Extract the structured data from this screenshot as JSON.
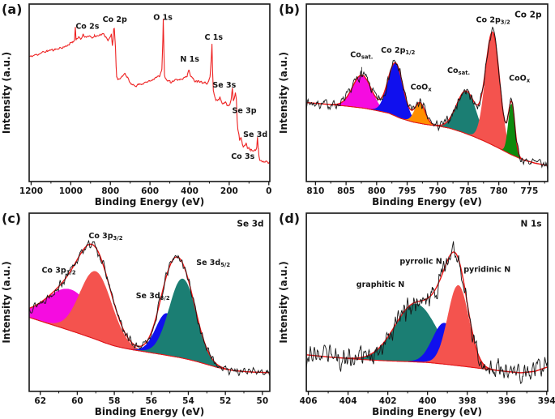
{
  "figure": {
    "description": "Four-panel XPS spectra figure",
    "background": "#ffffff"
  },
  "chart_data": [
    {
      "id": "a",
      "panel_letter": "(a)",
      "type": "line",
      "corner_label": "",
      "xlabel": "Binding Energy (eV)",
      "ylabel": "Intensity (a.u.)",
      "x_axis": {
        "left": 1210,
        "right": -5,
        "major_ticks": [
          1200,
          1000,
          800,
          600,
          400,
          200,
          0
        ],
        "minor_step": 100
      },
      "line_color": "#ee2222",
      "noise": 0.006,
      "seed": 11,
      "series": [
        {
          "name": "survey spectrum",
          "points": [
            [
              1200,
              0.705
            ],
            [
              1160,
              0.72
            ],
            [
              1120,
              0.735
            ],
            [
              1080,
              0.745
            ],
            [
              1040,
              0.755
            ],
            [
              1005,
              0.775
            ],
            [
              990,
              0.785
            ],
            [
              981,
              0.8
            ],
            [
              977,
              0.875
            ],
            [
              973,
              0.8
            ],
            [
              962,
              0.812
            ],
            [
              950,
              0.8
            ],
            [
              938,
              0.826
            ],
            [
              922,
              0.81
            ],
            [
              908,
              0.822
            ],
            [
              893,
              0.812
            ],
            [
              880,
              0.818
            ],
            [
              868,
              0.818
            ],
            [
              852,
              0.83
            ],
            [
              838,
              0.828
            ],
            [
              824,
              0.818
            ],
            [
              812,
              0.8
            ],
            [
              802,
              0.812
            ],
            [
              795,
              0.83
            ],
            [
              790,
              0.768
            ],
            [
              786,
              0.8
            ],
            [
              783,
              0.86
            ],
            [
              780,
              0.868
            ],
            [
              777,
              0.81
            ],
            [
              774,
              0.745
            ],
            [
              771,
              0.65
            ],
            [
              768,
              0.585
            ],
            [
              762,
              0.578
            ],
            [
              750,
              0.585
            ],
            [
              738,
              0.59
            ],
            [
              726,
              0.612
            ],
            [
              716,
              0.59
            ],
            [
              705,
              0.565
            ],
            [
              695,
              0.548
            ],
            [
              683,
              0.54
            ],
            [
              670,
              0.542
            ],
            [
              655,
              0.548
            ],
            [
              638,
              0.553
            ],
            [
              620,
              0.558
            ],
            [
              602,
              0.568
            ],
            [
              585,
              0.578
            ],
            [
              568,
              0.585
            ],
            [
              552,
              0.595
            ],
            [
              540,
              0.63
            ],
            [
              535,
              0.8
            ],
            [
              533,
              0.915
            ],
            [
              530,
              0.75
            ],
            [
              527,
              0.6
            ],
            [
              520,
              0.578
            ],
            [
              510,
              0.568
            ],
            [
              498,
              0.563
            ],
            [
              486,
              0.565
            ],
            [
              474,
              0.57
            ],
            [
              462,
              0.572
            ],
            [
              450,
              0.575
            ],
            [
              438,
              0.578
            ],
            [
              424,
              0.59
            ],
            [
              412,
              0.6
            ],
            [
              403,
              0.628
            ],
            [
              396,
              0.6
            ],
            [
              386,
              0.58
            ],
            [
              374,
              0.57
            ],
            [
              362,
              0.568
            ],
            [
              350,
              0.566
            ],
            [
              338,
              0.564
            ],
            [
              326,
              0.558
            ],
            [
              314,
              0.556
            ],
            [
              304,
              0.562
            ],
            [
              297,
              0.59
            ],
            [
              290,
              0.7
            ],
            [
              287,
              0.775
            ],
            [
              284,
              0.62
            ],
            [
              280,
              0.51
            ],
            [
              275,
              0.49
            ],
            [
              268,
              0.462
            ],
            [
              259,
              0.455
            ],
            [
              252,
              0.468
            ],
            [
              247,
              0.478
            ],
            [
              241,
              0.452
            ],
            [
              234,
              0.436
            ],
            [
              226,
              0.448
            ],
            [
              219,
              0.455
            ],
            [
              211,
              0.43
            ],
            [
              203,
              0.424
            ],
            [
              196,
              0.44
            ],
            [
              190,
              0.465
            ],
            [
              184,
              0.53
            ],
            [
              179,
              0.46
            ],
            [
              174,
              0.478
            ],
            [
              169,
              0.505
            ],
            [
              164,
              0.46
            ],
            [
              160,
              0.345
            ],
            [
              156,
              0.29
            ],
            [
              150,
              0.258
            ],
            [
              147,
              0.232
            ],
            [
              141,
              0.25
            ],
            [
              135,
              0.222
            ],
            [
              129,
              0.2
            ],
            [
              122,
              0.2
            ],
            [
              115,
              0.212
            ],
            [
              108,
              0.192
            ],
            [
              101,
              0.186
            ],
            [
              93,
              0.18
            ],
            [
              85,
              0.176
            ],
            [
              76,
              0.17
            ],
            [
              68,
              0.176
            ],
            [
              61,
              0.19
            ],
            [
              57,
              0.256
            ],
            [
              53,
              0.185
            ],
            [
              50,
              0.14
            ],
            [
              46,
              0.122
            ],
            [
              38,
              0.118
            ],
            [
              28,
              0.114
            ],
            [
              16,
              0.115
            ],
            [
              4,
              0.112
            ],
            [
              0,
              0.112
            ]
          ]
        }
      ],
      "annotations": [
        {
          "text": "Co 2s",
          "fx": 0.242,
          "fy": 0.139
        },
        {
          "text": "Co 2p",
          "fx": 0.356,
          "fy": 0.1
        },
        {
          "text": "O 1s",
          "fx": 0.556,
          "fy": 0.09
        },
        {
          "text": "N 1s",
          "fx": 0.667,
          "fy": 0.325
        },
        {
          "text": "C 1s",
          "fx": 0.767,
          "fy": 0.2
        },
        {
          "text": "Se 3s",
          "fx": 0.811,
          "fy": 0.47
        },
        {
          "text": "Se 3p",
          "fx": 0.894,
          "fy": 0.615
        },
        {
          "text": "Se 3d",
          "fx": 0.94,
          "fy": 0.748
        },
        {
          "text": "Co 3s",
          "fx": 0.888,
          "fy": 0.872
        }
      ]
    },
    {
      "id": "b",
      "panel_letter": "(b)",
      "type": "area",
      "corner_label": "Co 2p",
      "xlabel": "Binding Energy (eV)",
      "ylabel": "Intensity (a.u.)",
      "x_axis": {
        "left": 811.5,
        "right": 772,
        "major_ticks": [
          810,
          805,
          800,
          795,
          790,
          785,
          780,
          775
        ],
        "minor_step": 2.5
      },
      "data_color": "#161616",
      "envelope_color": "#e81414",
      "noise": 0.024,
      "seed": 7,
      "baseline": [
        [
          811.5,
          0.445
        ],
        [
          808,
          0.435
        ],
        [
          805,
          0.425
        ],
        [
          802,
          0.413
        ],
        [
          800,
          0.4
        ],
        [
          798,
          0.385
        ],
        [
          796,
          0.355
        ],
        [
          794,
          0.335
        ],
        [
          792,
          0.322
        ],
        [
          790,
          0.313
        ],
        [
          788,
          0.3
        ],
        [
          786,
          0.278
        ],
        [
          784,
          0.252
        ],
        [
          782,
          0.222
        ],
        [
          780,
          0.188
        ],
        [
          778,
          0.152
        ],
        [
          776,
          0.122
        ],
        [
          774,
          0.103
        ],
        [
          772,
          0.09
        ]
      ],
      "peaks": [
        {
          "name": "Co sat.",
          "center": 802.4,
          "sigma": 1.55,
          "amp": 0.185,
          "color": "#f50ce0"
        },
        {
          "name": "Co 2p1/2",
          "center": 796.9,
          "sigma": 1.25,
          "amp": 0.3,
          "color": "#1010ee"
        },
        {
          "name": "CoOx",
          "center": 792.9,
          "sigma": 0.85,
          "amp": 0.115,
          "color": "#ff8f00"
        },
        {
          "name": "Co sat.",
          "center": 785.3,
          "sigma": 1.6,
          "amp": 0.24,
          "color": "#1b7e73"
        },
        {
          "name": "Co 2p3/2",
          "center": 781.0,
          "sigma": 1.15,
          "amp": 0.63,
          "color": "#f4534e"
        },
        {
          "name": "CoOx",
          "center": 777.9,
          "sigma": 0.52,
          "amp": 0.285,
          "color": "#0d8a0d"
        }
      ],
      "annotations": [
        {
          "text": "Co_{sat.}",
          "fx": 0.229,
          "fy": 0.3,
          "leader": {
            "fy1": 0.355,
            "fy2": 0.41
          }
        },
        {
          "text": "Co 2p_{1/2}",
          "fx": 0.38,
          "fy": 0.275
        },
        {
          "text": "CoO_{x}",
          "fx": 0.475,
          "fy": 0.482
        },
        {
          "text": "Co_{sat.}",
          "fx": 0.631,
          "fy": 0.388
        },
        {
          "text": "Co 2p_{3/2}",
          "fx": 0.774,
          "fy": 0.103
        },
        {
          "text": "CoO_{x}",
          "fx": 0.883,
          "fy": 0.432
        }
      ]
    },
    {
      "id": "c",
      "panel_letter": "(c)",
      "type": "area",
      "corner_label": "Se 3d",
      "xlabel": "Binding Energy (eV)",
      "ylabel": "Intensity (a.u.)",
      "x_axis": {
        "left": 62.6,
        "right": 49.6,
        "major_ticks": [
          62,
          60,
          58,
          56,
          54,
          52,
          50
        ],
        "minor_step": 1
      },
      "data_color": "#161616",
      "envelope_color": "#e81414",
      "noise": 0.02,
      "seed": 13,
      "baseline": [
        [
          62.6,
          0.415
        ],
        [
          62,
          0.395
        ],
        [
          61.5,
          0.378
        ],
        [
          61,
          0.362
        ],
        [
          60.5,
          0.345
        ],
        [
          60,
          0.328
        ],
        [
          59.5,
          0.31
        ],
        [
          59,
          0.292
        ],
        [
          58.5,
          0.272
        ],
        [
          58,
          0.255
        ],
        [
          57.5,
          0.243
        ],
        [
          57,
          0.233
        ],
        [
          56.5,
          0.225
        ],
        [
          56,
          0.216
        ],
        [
          55.5,
          0.208
        ],
        [
          55,
          0.199
        ],
        [
          54.5,
          0.19
        ],
        [
          54,
          0.179
        ],
        [
          53.5,
          0.166
        ],
        [
          53,
          0.151
        ],
        [
          52.5,
          0.136
        ],
        [
          52,
          0.124
        ],
        [
          51.5,
          0.116
        ],
        [
          51,
          0.111
        ],
        [
          50.5,
          0.108
        ],
        [
          49.6,
          0.105
        ]
      ],
      "peaks": [
        {
          "name": "Co 3p1/2",
          "center": 60.35,
          "sigma": 1.3,
          "amp": 0.23,
          "color": "#f50ce0"
        },
        {
          "name": "Co 3p3/2",
          "center": 59.0,
          "sigma": 0.85,
          "amp": 0.38,
          "color": "#f4534e"
        },
        {
          "name": "Se 3d3/2",
          "center": 55.15,
          "sigma": 0.6,
          "amp": 0.235,
          "color": "#1010ee"
        },
        {
          "name": "Se 3d5/2",
          "center": 54.3,
          "sigma": 0.72,
          "amp": 0.445,
          "color": "#1b7e73"
        }
      ],
      "annotations": [
        {
          "text": "Co 3p_{1/2}",
          "fx": 0.123,
          "fy": 0.335
        },
        {
          "text": "Co 3p_{3/2}",
          "fx": 0.318,
          "fy": 0.14
        },
        {
          "text": "Se 3d_{3/2}",
          "fx": 0.514,
          "fy": 0.478
        },
        {
          "text": "Se 3d_{5/2}",
          "fx": 0.765,
          "fy": 0.29
        }
      ]
    },
    {
      "id": "d",
      "panel_letter": "(d)",
      "type": "area",
      "corner_label": "N 1s",
      "xlabel": "Binding Energy (eV)",
      "ylabel": "Intensity (a.u.)",
      "x_axis": {
        "left": 406.1,
        "right": 393.95,
        "major_ticks": [
          406,
          404,
          402,
          400,
          398,
          396,
          394
        ],
        "minor_step": 1
      },
      "data_color": "#161616",
      "envelope_color": "#e81414",
      "noise": 0.052,
      "seed": 23,
      "baseline": [
        [
          406.1,
          0.205
        ],
        [
          405,
          0.193
        ],
        [
          404,
          0.184
        ],
        [
          403,
          0.177
        ],
        [
          402,
          0.171
        ],
        [
          401,
          0.167
        ],
        [
          400,
          0.162
        ],
        [
          399,
          0.151
        ],
        [
          398,
          0.138
        ],
        [
          397,
          0.124
        ],
        [
          396,
          0.111
        ],
        [
          395.3,
          0.104
        ],
        [
          394.6,
          0.112
        ],
        [
          394,
          0.135
        ]
      ],
      "peaks": [
        {
          "name": "graphitic N",
          "center": 400.6,
          "sigma": 1.05,
          "amp": 0.325,
          "color": "#1b7e73"
        },
        {
          "name": "pyrrolic N",
          "center": 399.15,
          "sigma": 0.58,
          "amp": 0.23,
          "color": "#1010ee"
        },
        {
          "name": "pyridinic N",
          "center": 398.45,
          "sigma": 0.52,
          "amp": 0.45,
          "color": "#f4534e"
        }
      ],
      "annotations": [
        {
          "text": "graphitic N",
          "fx": 0.307,
          "fy": 0.415
        },
        {
          "text": "pyrrolic N",
          "fx": 0.475,
          "fy": 0.285
        },
        {
          "text": "pyridinic N",
          "fx": 0.749,
          "fy": 0.33
        }
      ]
    }
  ]
}
